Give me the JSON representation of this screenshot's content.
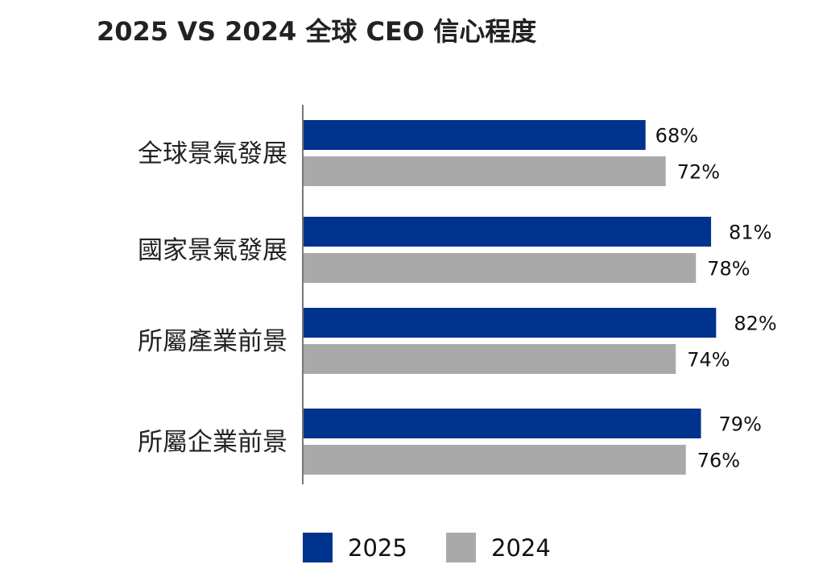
{
  "chart_data": {
    "type": "bar",
    "orientation": "horizontal",
    "title": "2025 VS 2024 全球 CEO 信心程度",
    "categories": [
      "全球景氣發展",
      "國家景氣發展",
      "所屬產業前景",
      "所屬企業前景"
    ],
    "series": [
      {
        "name": "2025",
        "color": "#00338d",
        "values": [
          68,
          81,
          82,
          79
        ],
        "labels": [
          "68%",
          "81%",
          "82%",
          "79%"
        ]
      },
      {
        "name": "2024",
        "color": "#a9a9a9",
        "values": [
          72,
          78,
          74,
          76
        ],
        "labels": [
          "72%",
          "78%",
          "74%",
          "76%"
        ]
      }
    ],
    "xlim": [
      0,
      100
    ],
    "unit": "%",
    "legend": "bottom",
    "grid": false
  }
}
